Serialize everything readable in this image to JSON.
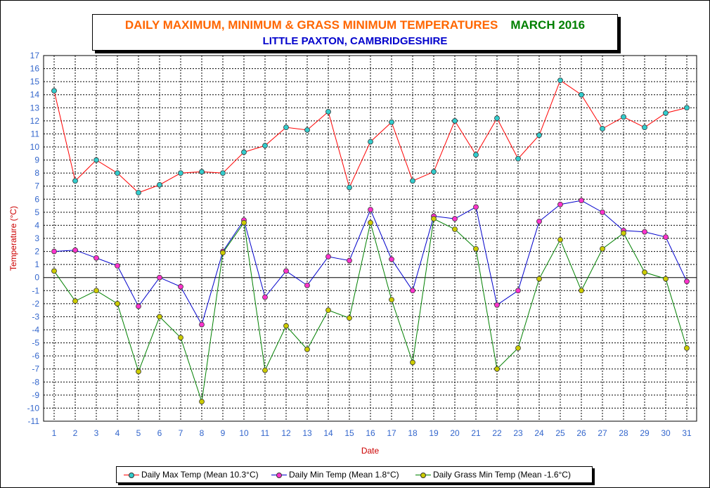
{
  "title": {
    "main": "DAILY MAXIMUM, MINIMUM & GRASS MINIMUM TEMPERATURES",
    "month": "MARCH 2016",
    "subtitle": "LITTLE PAXTON, CAMBRIDGESHIRE"
  },
  "chart_data": {
    "type": "line",
    "title": "DAILY MAXIMUM, MINIMUM & GRASS MINIMUM TEMPERATURES MARCH 2016",
    "subtitle": "LITTLE PAXTON, CAMBRIDGESHIRE",
    "xlabel": "Date",
    "ylabel": "Temperature (°C)",
    "ylim": [
      -11,
      17
    ],
    "yticks": [
      17,
      16,
      15,
      14,
      13,
      12,
      11,
      10,
      9,
      8,
      7,
      6,
      5,
      4,
      3,
      2,
      1,
      0,
      -1,
      -2,
      -3,
      -4,
      -5,
      -6,
      -7,
      -8,
      -9,
      -10,
      -11
    ],
    "x": [
      1,
      2,
      3,
      4,
      5,
      6,
      7,
      8,
      9,
      10,
      11,
      12,
      13,
      14,
      15,
      16,
      17,
      18,
      19,
      20,
      21,
      22,
      23,
      24,
      25,
      26,
      27,
      28,
      29,
      30,
      31
    ],
    "grid": true,
    "legend_position": "bottom",
    "series": [
      {
        "name": "Daily Max Temp (Mean 10.3°C)",
        "line_color": "#ff0000",
        "marker_color": "#33cccc",
        "values": [
          14.3,
          7.4,
          9.0,
          8.0,
          6.5,
          7.1,
          8.0,
          8.1,
          8.0,
          9.6,
          10.1,
          11.5,
          11.3,
          12.7,
          6.9,
          10.4,
          11.9,
          7.4,
          8.1,
          12.0,
          9.4,
          12.2,
          9.1,
          10.9,
          15.1,
          14.0,
          11.4,
          12.3,
          11.5,
          12.6,
          13.0
        ]
      },
      {
        "name": "Daily Min Temp (Mean 1.8°C)",
        "line_color": "#0000cc",
        "marker_color": "#ff33cc",
        "values": [
          2.0,
          2.1,
          1.5,
          0.9,
          -2.2,
          0.0,
          -0.7,
          -3.6,
          2.0,
          4.4,
          -1.5,
          0.5,
          -0.6,
          1.6,
          1.3,
          5.2,
          1.4,
          -1.0,
          4.7,
          4.5,
          5.4,
          -2.1,
          -1.0,
          4.3,
          5.6,
          5.9,
          5.0,
          3.6,
          3.5,
          3.1,
          -0.3
        ]
      },
      {
        "name": "Daily Grass Min Temp (Mean -1.6°C)",
        "line_color": "#008000",
        "marker_color": "#cccc00",
        "values": [
          0.5,
          -1.8,
          -1.0,
          -2.0,
          -7.2,
          -3.0,
          -4.6,
          -9.5,
          1.9,
          4.2,
          -7.1,
          -3.7,
          -5.5,
          -2.5,
          -3.1,
          4.2,
          -1.7,
          -6.5,
          4.5,
          3.7,
          2.2,
          -7.0,
          -5.4,
          -0.1,
          2.9,
          -1.0,
          2.2,
          3.4,
          0.4,
          -0.1,
          -5.4
        ]
      }
    ]
  }
}
